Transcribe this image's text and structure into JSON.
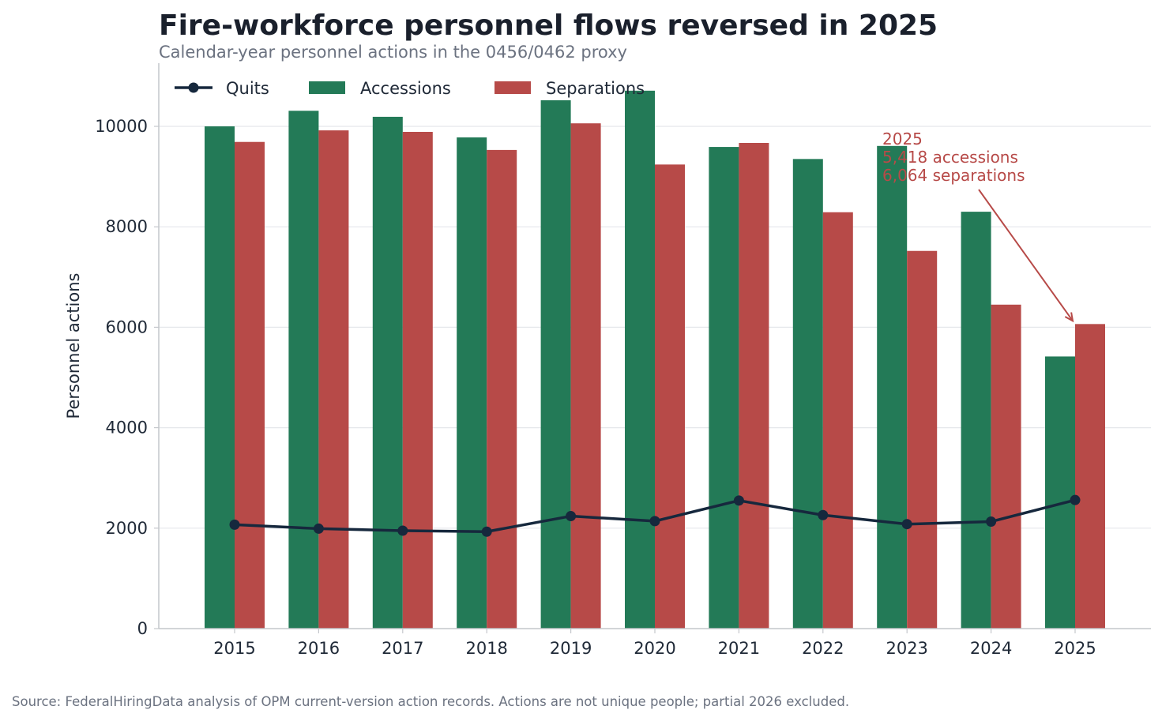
{
  "title": "Fire-workforce personnel flows reversed in 2025",
  "subtitle": "Calendar-year personnel actions in the 0456/0462 proxy",
  "source": "Source: FederalHiringData analysis of OPM current-version action records. Actions are not unique people; partial 2026 excluded.",
  "colors": {
    "title": "#1a202c",
    "subtitle": "#6b7280",
    "text": "#1f2937",
    "accessions": "#237a57",
    "separations": "#b74a48",
    "quits": "#16283d",
    "grid": "#e5e7eb",
    "axis": "#c4c7cc",
    "annotation": "#b74a48",
    "source": "#6b7280"
  },
  "chart_data": {
    "type": "bar",
    "categories": [
      "2015",
      "2016",
      "2017",
      "2018",
      "2019",
      "2020",
      "2021",
      "2022",
      "2023",
      "2024",
      "2025"
    ],
    "series": [
      {
        "name": "Accessions",
        "type": "bar",
        "color": "#237a57",
        "values": [
          10000,
          10310,
          10190,
          9780,
          10520,
          10710,
          9590,
          9350,
          9610,
          8300,
          5418
        ]
      },
      {
        "name": "Separations",
        "type": "bar",
        "color": "#b74a48",
        "values": [
          9690,
          9920,
          9890,
          9530,
          10060,
          9240,
          9670,
          8290,
          7520,
          6450,
          6064
        ]
      },
      {
        "name": "Quits",
        "type": "line",
        "color": "#16283d",
        "values": [
          2070,
          1990,
          1950,
          1930,
          2240,
          2140,
          2550,
          2260,
          2080,
          2130,
          2560
        ]
      }
    ],
    "legend_order": [
      "Quits",
      "Accessions",
      "Separations"
    ],
    "legend_position": "top-left",
    "ylabel": "Personnel actions",
    "xlabel": "",
    "ylim": [
      0,
      11200
    ],
    "yticks": [
      0,
      2000,
      4000,
      6000,
      8000,
      10000
    ],
    "grid": "horizontal",
    "annotation": {
      "lines": [
        "2025",
        "5,418 accessions",
        "6,064 separations"
      ],
      "arrow_target_category": "2025",
      "arrow_target_value": 6064
    }
  }
}
